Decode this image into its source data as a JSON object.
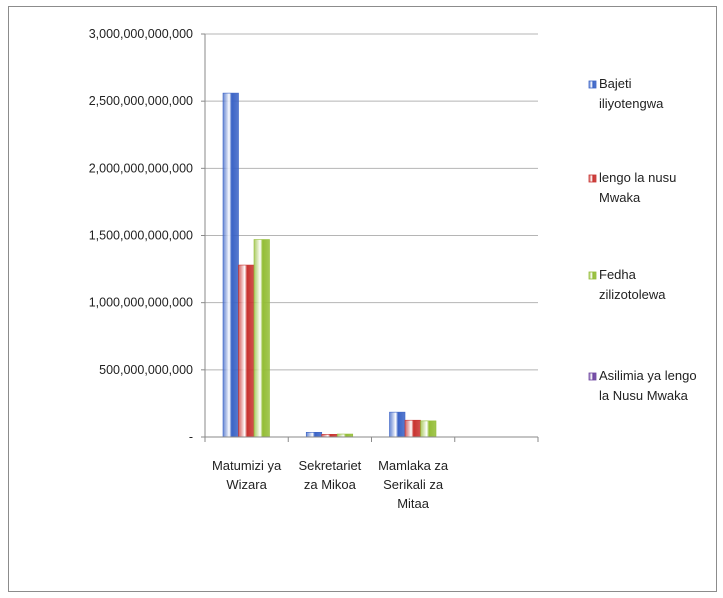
{
  "chart_data": {
    "type": "bar",
    "categories": [
      [
        "Matumizi ya",
        "Wizara"
      ],
      [
        "Sekretariet",
        "za Mikoa"
      ],
      [
        "Mamlaka za",
        "Serikali za",
        "Mitaa"
      ],
      [
        ""
      ]
    ],
    "series": [
      {
        "name": [
          "Bajeti",
          "iliyotengwa"
        ],
        "color": "#3a63c6",
        "values": [
          2560000000000,
          35000000000,
          185000000000,
          0
        ]
      },
      {
        "name": [
          "lengo la nusu",
          "Mwaka"
        ],
        "color": "#c8322f",
        "values": [
          1280000000000,
          20000000000,
          125000000000,
          0
        ]
      },
      {
        "name": [
          "Fedha",
          "zilizotolewa"
        ],
        "color": "#93bd35",
        "values": [
          1470000000000,
          22000000000,
          120000000000,
          0
        ]
      },
      {
        "name": [
          "Asilimia ya lengo",
          "la Nusu Mwaka"
        ],
        "color": "#6c43a0",
        "values": [
          0,
          0,
          0,
          0
        ]
      }
    ],
    "y_ticks": [
      0,
      500000000000,
      1000000000000,
      1500000000000,
      2000000000000,
      2500000000000,
      3000000000000
    ],
    "y_tick_labels": [
      "-",
      "500,000,000,000",
      "1,000,000,000,000",
      "1,500,000,000,000",
      "2,000,000,000,000",
      "2,500,000,000,000",
      "3,000,000,000,000"
    ],
    "ylim": [
      0,
      3000000000000
    ],
    "grid": true,
    "legend_position": "right"
  }
}
